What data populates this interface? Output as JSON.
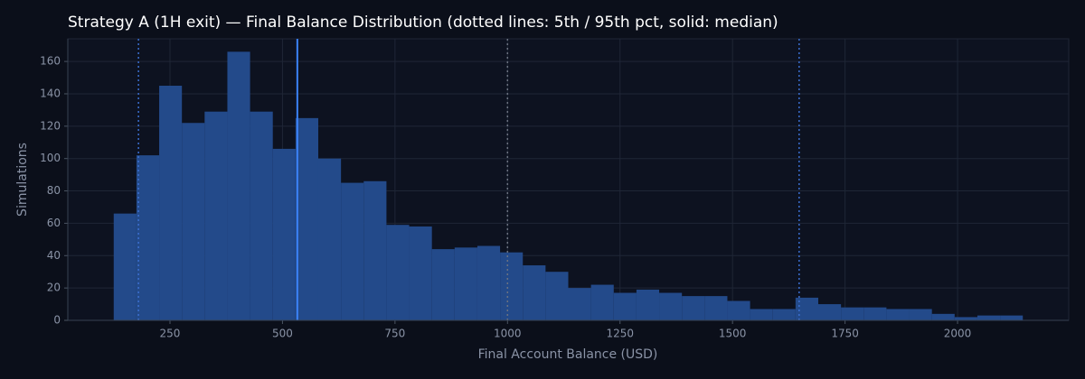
{
  "chart_data": {
    "type": "histogram",
    "title": "Strategy A (1H exit) — Final Balance Distribution (dotted lines: 5th / 95th pct, solid: median)",
    "x_label": "Final Account Balance (USD)",
    "y_label": "Simulations",
    "bins": [
      125,
      175.5,
      226,
      276.5,
      327,
      377.5,
      428,
      478.5,
      529,
      579.5,
      630,
      680.5,
      731,
      781.5,
      832,
      882.5,
      933,
      983.5,
      1034,
      1084.5,
      1135,
      1185.5,
      1236,
      1286.5,
      1337,
      1387.5,
      1438,
      1488.5,
      1539,
      1589.5,
      1640,
      1690.5,
      1741,
      1791.5,
      1842,
      1892.5,
      1943,
      1993.5,
      2044,
      2094.5,
      2145
    ],
    "counts": [
      66,
      102,
      145,
      122,
      129,
      166,
      129,
      106,
      125,
      100,
      85,
      86,
      59,
      58,
      44,
      45,
      46,
      42,
      34,
      30,
      20,
      22,
      17,
      19,
      17,
      15,
      15,
      12,
      7,
      7,
      14,
      10,
      8,
      8,
      7,
      7,
      4,
      2,
      3,
      3
    ],
    "color": "#234a8a",
    "reference_lines": [
      {
        "value": 180,
        "style": "dotted",
        "color": "#3b6fd0"
      },
      {
        "value": 533,
        "style": "solid",
        "color": "#3b82f6"
      },
      {
        "value": 1648,
        "style": "dotted",
        "color": "#3b6fd0"
      },
      {
        "value": 1000,
        "style": "dotted",
        "color": "#6b7280"
      }
    ],
    "xlim": [
      23,
      2247
    ],
    "ylim": [
      0,
      174
    ],
    "xticks": [
      250,
      500,
      750,
      1000,
      1250,
      1500,
      1750,
      2000
    ],
    "yticks": [
      0,
      20,
      40,
      60,
      80,
      100,
      120,
      140,
      160
    ],
    "grid": true
  }
}
